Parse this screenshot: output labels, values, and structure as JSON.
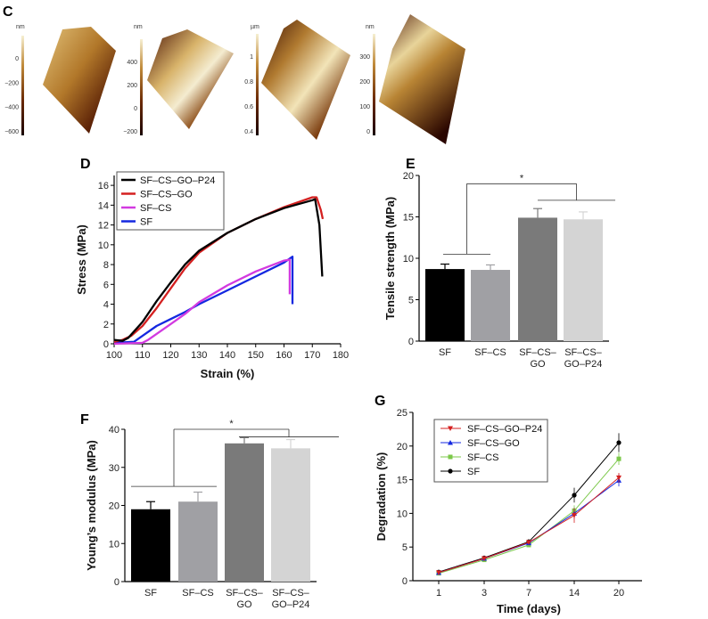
{
  "afm_panel": {
    "label": "C",
    "images": [
      {
        "unit": "nm",
        "ticks": [
          "0",
          "−200",
          "−400",
          "−600"
        ]
      },
      {
        "unit": "nm",
        "ticks": [
          "400",
          "200",
          "0",
          "−200"
        ]
      },
      {
        "unit": "µm",
        "ticks": [
          "1",
          "0.8",
          "0.6",
          "0.4"
        ]
      },
      {
        "unit": "nm",
        "ticks": [
          "300",
          "200",
          "100",
          "0"
        ]
      }
    ]
  },
  "colors": {
    "black": "#000000",
    "red": "#d42020",
    "magenta": "#d23ae0",
    "blue": "#1428e0",
    "green": "#7cc84a"
  },
  "chart_data": [
    {
      "panel": "D",
      "type": "line",
      "xlabel": "Strain (%)",
      "ylabel": "Stress (MPa)",
      "xlim": [
        100,
        180
      ],
      "ylim": [
        0,
        17
      ],
      "xticks": [
        "100",
        "110",
        "120",
        "130",
        "140",
        "150",
        "160",
        "170",
        "180"
      ],
      "yticks": [
        "0",
        "2",
        "4",
        "6",
        "8",
        "10",
        "12",
        "14",
        "16"
      ],
      "legend": "top-left",
      "series": [
        {
          "name": "SF–CS–GO–P24",
          "color": "#000000",
          "points": [
            [
              100,
              0.4
            ],
            [
              103,
              0.3
            ],
            [
              105,
              0.6
            ],
            [
              110,
              2.2
            ],
            [
              115,
              4.3
            ],
            [
              120,
              6.2
            ],
            [
              125,
              8.0
            ],
            [
              130,
              9.4
            ],
            [
              140,
              11.2
            ],
            [
              150,
              12.6
            ],
            [
              160,
              13.7
            ],
            [
              170,
              14.5
            ],
            [
              171,
              14.6
            ],
            [
              172.5,
              12
            ],
            [
              173.5,
              6.8
            ]
          ]
        },
        {
          "name": "SF–CS–GO",
          "color": "#d42020",
          "points": [
            [
              100,
              0.2
            ],
            [
              103,
              0.4
            ],
            [
              106,
              0.8
            ],
            [
              110,
              1.8
            ],
            [
              115,
              3.6
            ],
            [
              120,
              5.6
            ],
            [
              125,
              7.6
            ],
            [
              130,
              9.2
            ],
            [
              140,
              11.2
            ],
            [
              150,
              12.6
            ],
            [
              160,
              13.8
            ],
            [
              170,
              14.8
            ],
            [
              171.5,
              14.8
            ],
            [
              173,
              13.5
            ],
            [
              173.7,
              12.6
            ]
          ]
        },
        {
          "name": "SF–CS",
          "color": "#d23ae0",
          "points": [
            [
              100,
              0
            ],
            [
              110,
              0.1
            ],
            [
              112,
              0.4
            ],
            [
              115,
              1.0
            ],
            [
              120,
              2.0
            ],
            [
              125,
              3.0
            ],
            [
              130,
              4.2
            ],
            [
              140,
              5.9
            ],
            [
              150,
              7.3
            ],
            [
              160,
              8.4
            ],
            [
              162,
              8.5
            ],
            [
              162,
              5.0
            ]
          ]
        },
        {
          "name": "SF",
          "color": "#1428e0",
          "points": [
            [
              100,
              0.1
            ],
            [
              107,
              0.2
            ],
            [
              110,
              0.8
            ],
            [
              115,
              1.8
            ],
            [
              120,
              2.5
            ],
            [
              125,
              3.2
            ],
            [
              130,
              4.0
            ],
            [
              140,
              5.4
            ],
            [
              150,
              6.8
            ],
            [
              160,
              8.2
            ],
            [
              163,
              8.8
            ],
            [
              163,
              4.0
            ]
          ]
        }
      ]
    },
    {
      "panel": "E",
      "type": "bar",
      "ylabel": "Tensile strength (MPa)",
      "ylim": [
        0,
        20
      ],
      "yticks": [
        "0",
        "5",
        "10",
        "15",
        "20"
      ],
      "categories": [
        [
          "SF"
        ],
        [
          "SF–CS"
        ],
        [
          "SF–CS–",
          "GO"
        ],
        [
          "SF–CS–",
          "GO–P24"
        ]
      ],
      "values": [
        8.7,
        8.6,
        14.9,
        14.7
      ],
      "errors": [
        0.6,
        0.6,
        1.1,
        0.9
      ],
      "bar_colors": [
        "#000000",
        "#a0a0a4",
        "#7a7a7a",
        "#d4d4d4"
      ],
      "significance": "*"
    },
    {
      "panel": "F",
      "type": "bar",
      "ylabel": "Young’s modulus (MPa)",
      "ylim": [
        0,
        40
      ],
      "yticks": [
        "0",
        "10",
        "20",
        "30",
        "40"
      ],
      "categories": [
        [
          "SF"
        ],
        [
          "SF–CS"
        ],
        [
          "SF–CS–",
          "GO"
        ],
        [
          "SF–CS–",
          "GO–P24"
        ]
      ],
      "values": [
        19.0,
        21.0,
        36.3,
        35.0
      ],
      "errors": [
        2.0,
        2.5,
        1.5,
        2.3
      ],
      "bar_colors": [
        "#000000",
        "#a0a0a4",
        "#7a7a7a",
        "#d4d4d4"
      ],
      "significance": "*"
    },
    {
      "panel": "G",
      "type": "line",
      "xlabel": "Time (days)",
      "ylabel": "Degradation (%)",
      "categories": [
        "1",
        "3",
        "7",
        "14",
        "20"
      ],
      "ylim": [
        0,
        25
      ],
      "yticks": [
        "0",
        "5",
        "10",
        "15",
        "20",
        "25"
      ],
      "legend": "top-left",
      "series": [
        {
          "name": "SF–CS–GO–P24",
          "color": "#d42020",
          "marker": "triangle-down",
          "values": [
            1.2,
            3.3,
            5.7,
            9.7,
            15.3
          ],
          "errors": [
            0.2,
            0.2,
            0.2,
            1.1,
            0.7
          ]
        },
        {
          "name": "SF–CS–GO",
          "color": "#1428e0",
          "marker": "triangle-up",
          "values": [
            1.2,
            3.3,
            5.6,
            10.0,
            14.9
          ],
          "errors": [
            0.2,
            0.2,
            0.2,
            0.8,
            0.9
          ]
        },
        {
          "name": "SF–CS",
          "color": "#7cc84a",
          "marker": "square",
          "values": [
            1.1,
            3.1,
            5.3,
            10.4,
            18.1
          ],
          "errors": [
            0.2,
            0.2,
            0.2,
            0.8,
            0.9
          ]
        },
        {
          "name": "SF",
          "color": "#000000",
          "marker": "circle",
          "values": [
            1.3,
            3.4,
            5.8,
            12.7,
            20.5
          ],
          "errors": [
            0.2,
            0.2,
            0.2,
            1.1,
            1.4
          ]
        }
      ]
    }
  ]
}
